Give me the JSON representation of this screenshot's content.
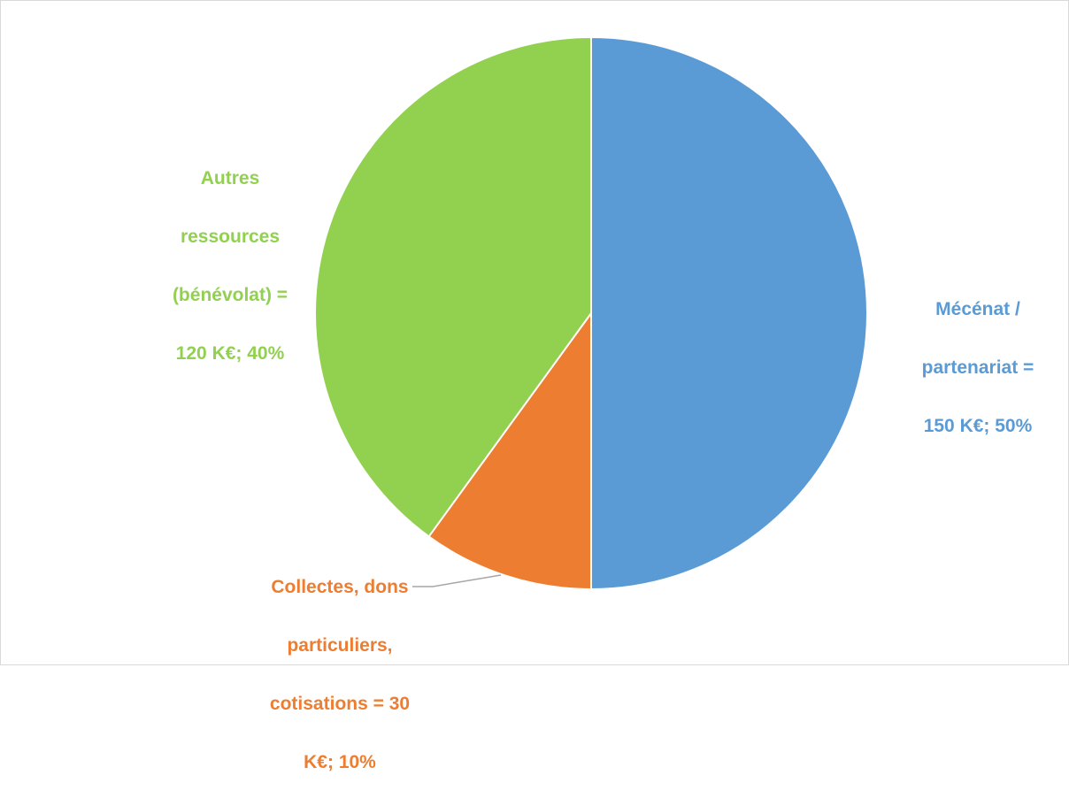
{
  "chart_data": {
    "type": "pie",
    "unit": "K€",
    "slices": [
      {
        "name": "Mécénat / partenariat",
        "value": 150,
        "percent": 50,
        "color": "#5b9bd5",
        "label_lines": [
          "Mécénat /",
          "partenariat =",
          "150 K€; 50%"
        ]
      },
      {
        "name": "Collectes, dons particuliers, cotisations",
        "value": 30,
        "percent": 10,
        "color": "#ed7d31",
        "label_lines": [
          "Collectes, dons",
          "particuliers,",
          "cotisations = 30",
          "K€; 10%"
        ]
      },
      {
        "name": "Autres ressources (bénévolat)",
        "value": 120,
        "percent": 40,
        "color": "#92d050",
        "label_lines": [
          "Autres",
          "ressources",
          "(bénévolat) =",
          "120 K€; 40%"
        ]
      }
    ],
    "slice_border_color": "#ffffff",
    "leader_line_color": "#a6a6a6",
    "legend": "none"
  }
}
